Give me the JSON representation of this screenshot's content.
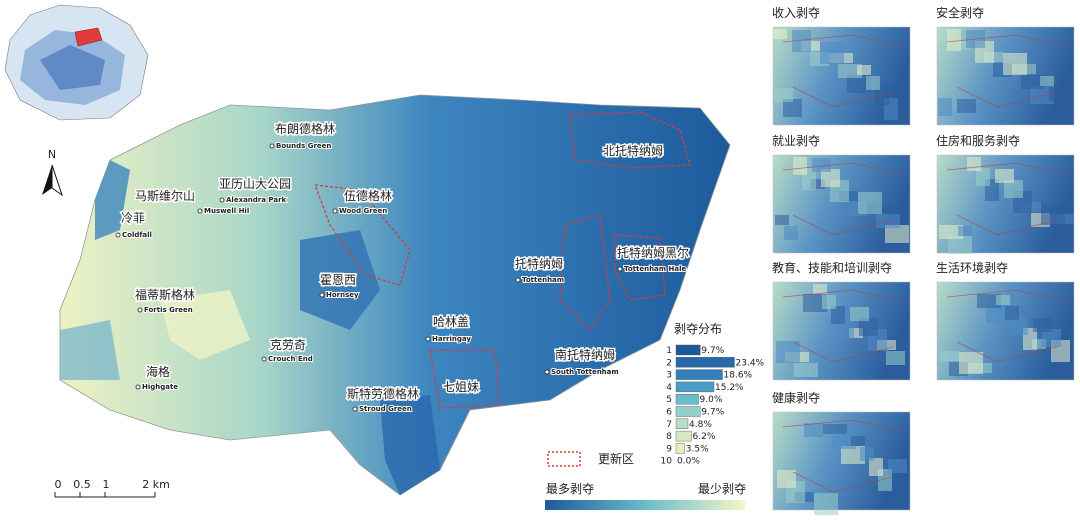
{
  "north": "N",
  "scale_bar": {
    "labels": [
      "0",
      "0.5",
      "1",
      "2 km"
    ]
  },
  "places": [
    {
      "zh": "布朗德格林",
      "en": "Bounds Green"
    },
    {
      "zh": "马斯维尔山",
      "en": "Muswell Hil"
    },
    {
      "zh": "亚历山大公园",
      "en": "Alexandra Park"
    },
    {
      "zh": "冷菲",
      "en": "Coldfall"
    },
    {
      "zh": "伍德格林",
      "en": "Wood Green"
    },
    {
      "zh": "霍恩西",
      "en": "Hornsey"
    },
    {
      "zh": "福蒂斯格林",
      "en": "Fortis Green"
    },
    {
      "zh": "克劳奇",
      "en": "Crouch End"
    },
    {
      "zh": "海格",
      "en": "Highgate"
    },
    {
      "zh": "哈林盖",
      "en": "Harringay"
    },
    {
      "zh": "斯特劳德格林",
      "en": "Stroud Green"
    },
    {
      "zh": "托特纳姆",
      "en": "Tottenham"
    },
    {
      "zh": "托特纳姆黑尔",
      "en": "Tottenham Hale"
    },
    {
      "zh": "南托特纳姆",
      "en": "South Tottenham"
    }
  ],
  "renewal_areas": [
    "北托特纳姆",
    "七姐妹"
  ],
  "distribution": {
    "title": "剥夺分布",
    "categories": [
      1,
      2,
      3,
      4,
      5,
      6,
      7,
      8,
      9,
      10
    ],
    "values": [
      9.7,
      23.4,
      18.6,
      15.2,
      9.0,
      9.7,
      4.8,
      6.2,
      3.5,
      0.0
    ],
    "value_labels": [
      "9.7%",
      "23.4%",
      "18.6%",
      "15.2%",
      "9.0%",
      "9.7%",
      "4.8%",
      "6.2%",
      "3.5%",
      "0.0%"
    ],
    "colors": [
      "#1d5a9c",
      "#2768ad",
      "#3480bd",
      "#4a9cc6",
      "#6bbccb",
      "#94d0c9",
      "#b6dec6",
      "#d2e9c3",
      "#e5f0c1",
      "#f4f6c6"
    ]
  },
  "legend": {
    "renewal": "更新区",
    "most": "最多剥夺",
    "least": "最少剥夺"
  },
  "panels": [
    "收入剥夺",
    "安全剥夺",
    "就业剥夺",
    "住房和服务剥夺",
    "教育、技能和培训剥夺",
    "生活环境剥夺",
    "健康剥夺"
  ]
}
